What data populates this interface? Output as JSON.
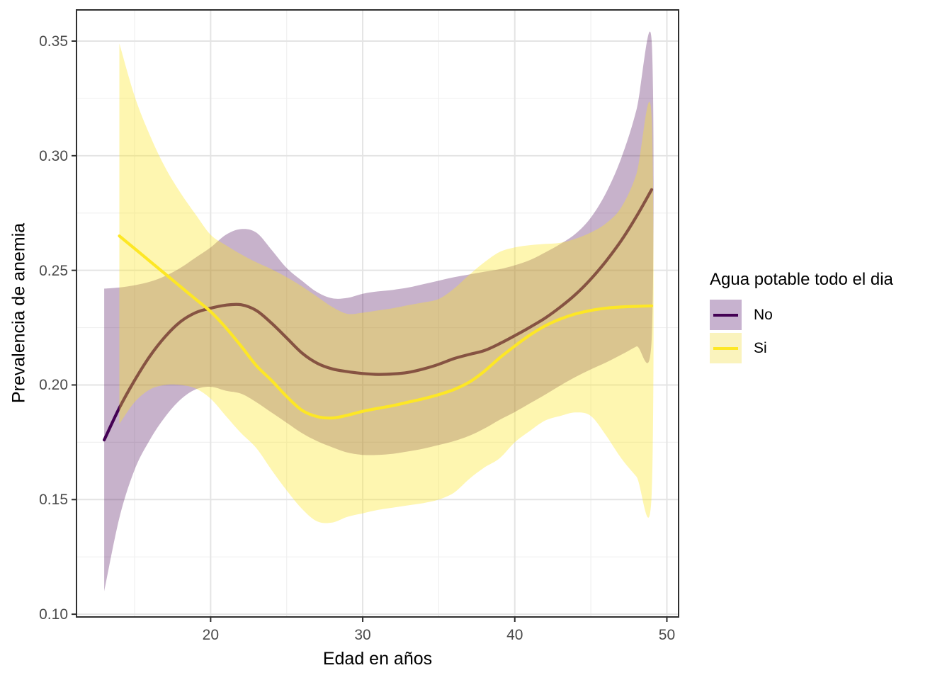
{
  "chart_data": {
    "type": "line",
    "subtype": "smoothed-lines-with-confidence-ribbons",
    "title": "",
    "xlabel": "Edad en años",
    "ylabel": "Prevalencia de anemia",
    "xlim": [
      11.18,
      50.77
    ],
    "ylim": [
      0.0988,
      0.3636
    ],
    "grid": "on",
    "x_ticks": {
      "values": [
        20,
        30,
        40,
        50
      ],
      "labels": [
        "20",
        "30",
        "40",
        "50"
      ],
      "minor": [
        15,
        25,
        35,
        45
      ]
    },
    "y_ticks": {
      "values": [
        0.1,
        0.15,
        0.2,
        0.25,
        0.3,
        0.35
      ],
      "labels": [
        "0.10",
        "0.15",
        "0.20",
        "0.25",
        "0.30",
        "0.35"
      ],
      "minor": [
        0.125,
        0.175,
        0.225,
        0.275,
        0.325
      ]
    },
    "legend": {
      "title": "Agua potable todo el dia",
      "position": "right",
      "entries": [
        {
          "label": "No",
          "line_color": "#440154",
          "key_bg": "#c7b2cf"
        },
        {
          "label": "Si",
          "line_color": "#fde725",
          "key_bg": "#faf3bd"
        }
      ]
    },
    "series": [
      {
        "name": "No",
        "line_color": "#440154",
        "ribbon_color": "#440154",
        "ribbon_opacity": 0.3,
        "x": [
          13,
          14,
          15,
          16,
          17,
          18,
          19,
          20,
          21,
          22,
          23,
          24,
          25,
          26,
          27,
          28,
          29,
          30,
          31,
          32,
          33,
          34,
          35,
          36,
          37,
          38,
          39,
          40,
          41,
          42,
          43,
          44,
          45,
          46,
          47,
          48,
          49
        ],
        "y": [
          0.176,
          0.19,
          0.202,
          0.2125,
          0.221,
          0.2275,
          0.2315,
          0.2335,
          0.2348,
          0.235,
          0.2325,
          0.227,
          0.2205,
          0.214,
          0.2095,
          0.207,
          0.2058,
          0.205,
          0.2046,
          0.2048,
          0.2055,
          0.207,
          0.209,
          0.2115,
          0.2133,
          0.215,
          0.218,
          0.2215,
          0.2252,
          0.2292,
          0.234,
          0.2395,
          0.2462,
          0.254,
          0.263,
          0.2735,
          0.2852
        ],
        "upper": [
          0.242,
          0.2425,
          0.2435,
          0.245,
          0.2475,
          0.251,
          0.2555,
          0.26,
          0.2655,
          0.268,
          0.2665,
          0.259,
          0.251,
          0.2455,
          0.2405,
          0.2378,
          0.238,
          0.2398,
          0.2408,
          0.2415,
          0.2425,
          0.244,
          0.2455,
          0.247,
          0.2482,
          0.2494,
          0.2505,
          0.2522,
          0.2545,
          0.2578,
          0.2615,
          0.266,
          0.273,
          0.2838,
          0.299,
          0.32,
          0.35
        ],
        "lower": [
          0.11,
          0.142,
          0.163,
          0.176,
          0.186,
          0.1935,
          0.198,
          0.1992,
          0.1975,
          0.1962,
          0.1925,
          0.188,
          0.1835,
          0.179,
          0.1755,
          0.1728,
          0.1705,
          0.1695,
          0.1695,
          0.17,
          0.171,
          0.1722,
          0.1738,
          0.1755,
          0.1778,
          0.181,
          0.1848,
          0.1882,
          0.192,
          0.1958,
          0.1998,
          0.2035,
          0.2068,
          0.2098,
          0.2132,
          0.2168,
          0.22
        ]
      },
      {
        "name": "Si",
        "line_color": "#fde725",
        "ribbon_color": "#fde725",
        "ribbon_opacity": 0.36,
        "x": [
          14,
          15,
          16,
          17,
          18,
          19,
          20,
          21,
          22,
          23,
          24,
          25,
          26,
          27,
          28,
          29,
          30,
          31,
          32,
          33,
          34,
          35,
          36,
          37,
          38,
          39,
          40,
          41,
          42,
          43,
          44,
          45,
          46,
          47,
          48,
          49
        ],
        "y": [
          0.265,
          0.2595,
          0.254,
          0.2485,
          0.243,
          0.2375,
          0.232,
          0.225,
          0.217,
          0.2085,
          0.202,
          0.195,
          0.189,
          0.1862,
          0.1856,
          0.1868,
          0.1885,
          0.1898,
          0.191,
          0.1925,
          0.194,
          0.1958,
          0.198,
          0.2012,
          0.206,
          0.2118,
          0.217,
          0.2218,
          0.2258,
          0.2288,
          0.231,
          0.2325,
          0.2335,
          0.234,
          0.2343,
          0.2345
        ],
        "upper": [
          0.349,
          0.326,
          0.309,
          0.295,
          0.284,
          0.2745,
          0.2655,
          0.261,
          0.257,
          0.2535,
          0.2505,
          0.247,
          0.243,
          0.2385,
          0.234,
          0.231,
          0.2315,
          0.2325,
          0.2335,
          0.2348,
          0.236,
          0.2375,
          0.242,
          0.248,
          0.2535,
          0.258,
          0.26,
          0.261,
          0.2615,
          0.262,
          0.2638,
          0.2665,
          0.2705,
          0.2775,
          0.292,
          0.3165
        ],
        "lower": [
          0.183,
          0.1925,
          0.198,
          0.2,
          0.2,
          0.1985,
          0.194,
          0.1865,
          0.179,
          0.1725,
          0.163,
          0.154,
          0.146,
          0.1405,
          0.14,
          0.1425,
          0.144,
          0.1455,
          0.1465,
          0.1475,
          0.1485,
          0.15,
          0.153,
          0.159,
          0.164,
          0.168,
          0.175,
          0.18,
          0.1845,
          0.1865,
          0.188,
          0.1865,
          0.178,
          0.168,
          0.16,
          0.1525
        ]
      }
    ],
    "style": {
      "panel_background": "#ffffff",
      "panel_border": "#2f2f2f",
      "grid_major": "#e4e4e4",
      "grid_minor": "#f0f0f0",
      "tick_color": "#2f2f2f",
      "tick_label_color": "#4b4b4b"
    }
  }
}
